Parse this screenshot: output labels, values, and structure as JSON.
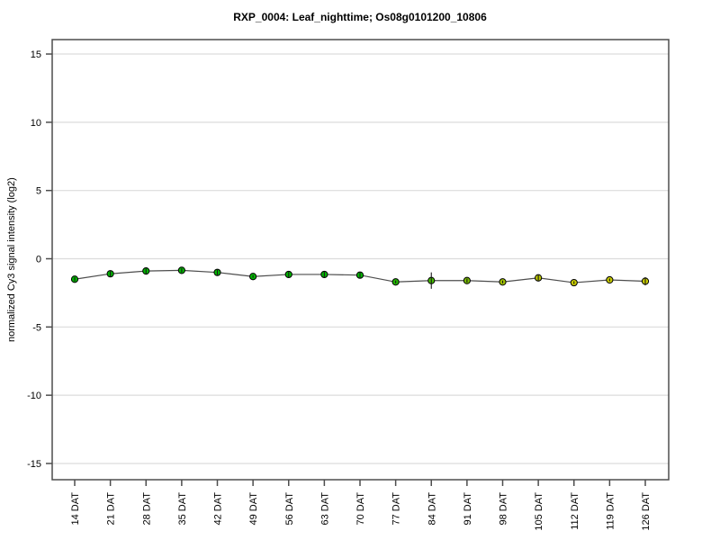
{
  "page": {
    "background": "#ffffff"
  },
  "chart_data": {
    "type": "line",
    "title": "RXP_0004: Leaf_nighttime; Os08g0101200_10806",
    "ylabel": "normalized Cy3 signal intensity (log2)",
    "xlabel": "",
    "ylim": [
      -16.2,
      16.1
    ],
    "yticks": [
      15,
      10,
      5,
      0,
      -5,
      -10,
      -15
    ],
    "grid": {
      "horizontal": true,
      "vertical": false,
      "color": "#dcdcdc"
    },
    "legend": null,
    "frame_color": "#4d4d4d",
    "line_color": "#4d4d4d",
    "point_outline_color": "#000000",
    "categories": [
      "14 DAT",
      "21 DAT",
      "28 DAT",
      "35 DAT",
      "42 DAT",
      "49 DAT",
      "56 DAT",
      "63 DAT",
      "70 DAT",
      "77 DAT",
      "84 DAT",
      "91 DAT",
      "98 DAT",
      "105 DAT",
      "112 DAT",
      "119 DAT",
      "126 DAT"
    ],
    "series": [
      {
        "name": "normalized Cy3 signal intensity",
        "values": [
          -1.5,
          -1.1,
          -0.9,
          -0.85,
          -1.0,
          -1.3,
          -1.15,
          -1.15,
          -1.2,
          -1.7,
          -1.6,
          -1.6,
          -1.7,
          -1.4,
          -1.75,
          -1.55,
          -1.65
        ],
        "errors": [
          0.15,
          0.2,
          0.2,
          0.15,
          0.2,
          0.1,
          0.2,
          0.2,
          0.2,
          0.1,
          0.6,
          0.15,
          0.1,
          0.2,
          0.1,
          0.1,
          0.3
        ],
        "point_colors": [
          "#00b400",
          "#00b400",
          "#00b400",
          "#00b400",
          "#00b400",
          "#00b400",
          "#00b400",
          "#00b400",
          "#00b400",
          "#22b400",
          "#44bb00",
          "#77bb00",
          "#a0c000",
          "#b8c400",
          "#c8cc00",
          "#c8cc00",
          "#c8cc00"
        ]
      }
    ]
  }
}
